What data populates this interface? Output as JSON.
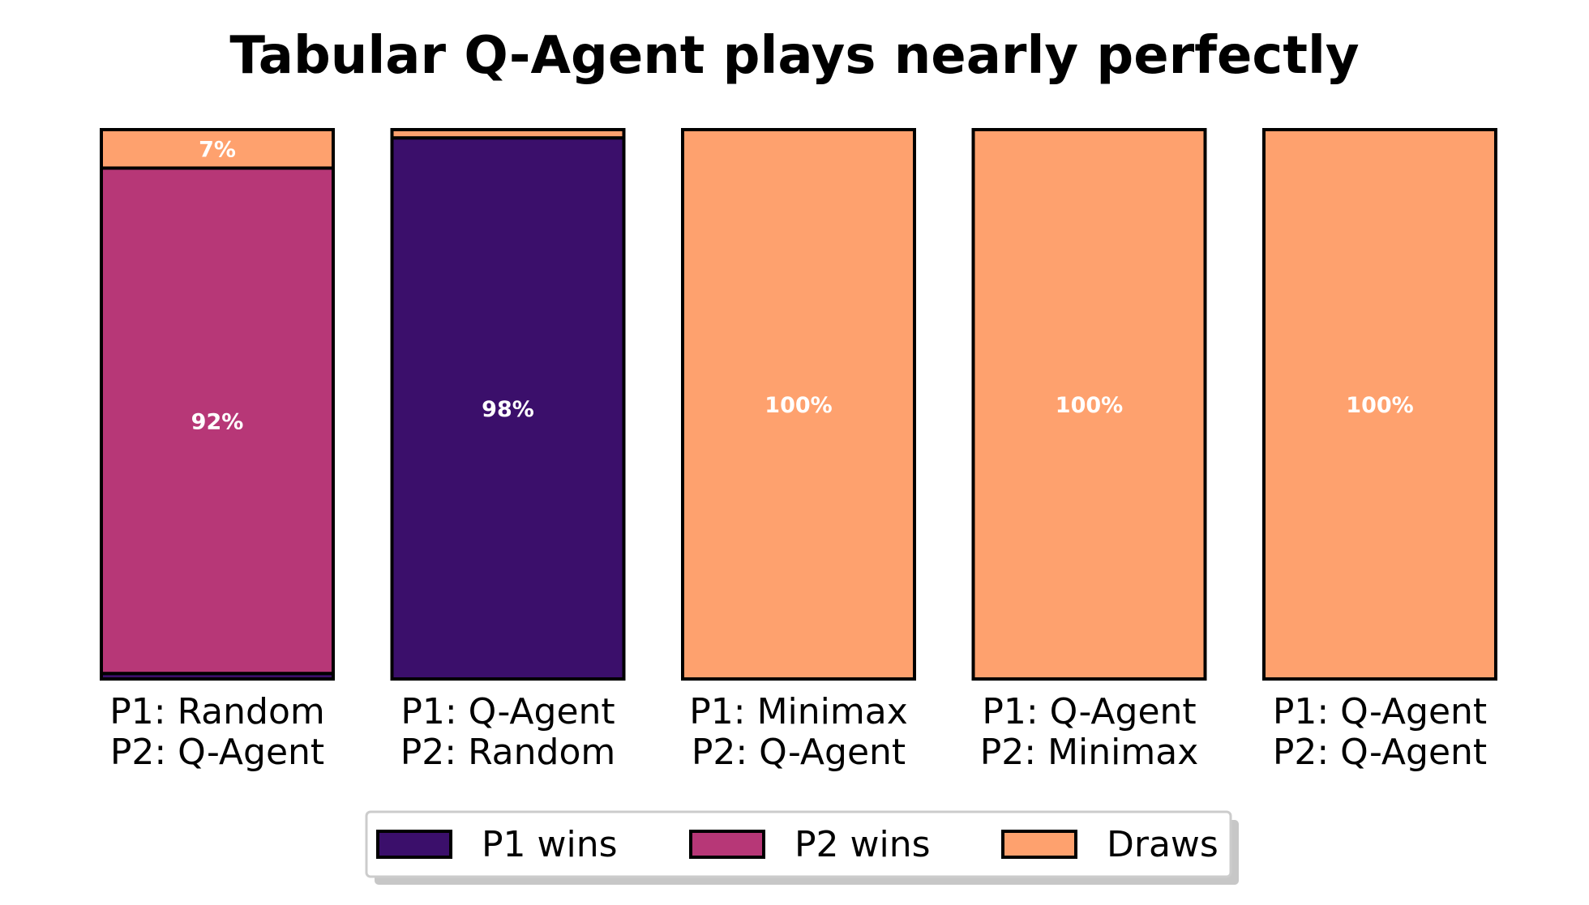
{
  "chart_data": {
    "type": "bar",
    "stacked": true,
    "orientation": "vertical",
    "title": "Tabular Q-Agent plays nearly perfectly",
    "xlabel": "",
    "ylabel": "",
    "ylim": [
      0,
      100
    ],
    "grid": false,
    "legend_position": "bottom-center",
    "categories": [
      [
        "P1: Random",
        "P2: Q-Agent"
      ],
      [
        "P1: Q-Agent",
        "P2: Random"
      ],
      [
        "P1: Minimax",
        "P2: Q-Agent"
      ],
      [
        "P1: Q-Agent",
        "P2: Minimax"
      ],
      [
        "P1: Q-Agent",
        "P2: Q-Agent"
      ]
    ],
    "series": [
      {
        "name": "P1 wins",
        "color": "#3b0f6b",
        "values": [
          1,
          98.5,
          0,
          0,
          0
        ]
      },
      {
        "name": "P2 wins",
        "color": "#b73777",
        "values": [
          92,
          0,
          0,
          0,
          0
        ]
      },
      {
        "name": "Draws",
        "color": "#fea16e",
        "values": [
          7,
          1.5,
          100,
          100,
          100
        ]
      }
    ],
    "data_labels": [
      [
        null,
        "92%",
        "7%"
      ],
      [
        "98%",
        null,
        null
      ],
      [
        null,
        null,
        "100%"
      ],
      [
        null,
        null,
        "100%"
      ],
      [
        null,
        null,
        "100%"
      ]
    ]
  }
}
